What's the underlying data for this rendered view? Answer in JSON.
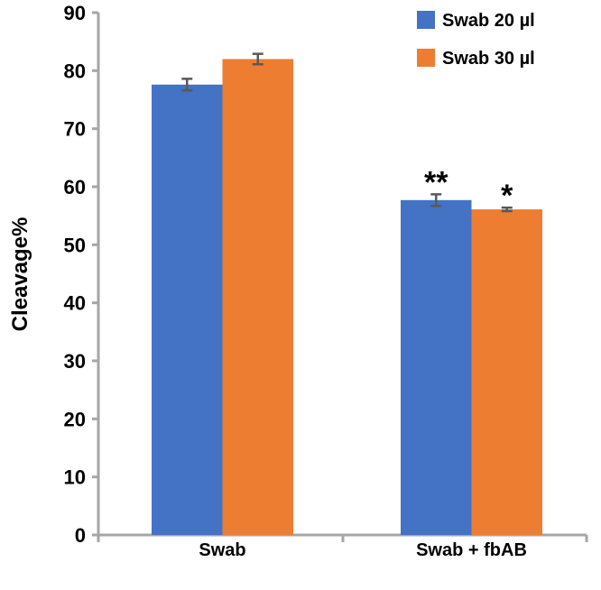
{
  "chart_data": {
    "type": "bar",
    "title": "",
    "xlabel": "",
    "ylabel": "Cleavage%",
    "ylim": [
      0,
      90
    ],
    "yticks": [
      "0",
      "10",
      "20",
      "30",
      "40",
      "50",
      "60",
      "70",
      "80",
      "90"
    ],
    "categories": [
      "Swab",
      "Swab + fbAB"
    ],
    "series": [
      {
        "name": "Swab 20 µl",
        "color": "#4472C4",
        "values": [
          77.6,
          57.7
        ],
        "errors": [
          1.0,
          1.0
        ],
        "annotations": [
          "",
          "**"
        ]
      },
      {
        "name": "Swab 30 µl",
        "color": "#ED7D31",
        "values": [
          82.0,
          56.1
        ],
        "errors": [
          0.9,
          0.3
        ],
        "annotations": [
          "",
          "*"
        ]
      }
    ],
    "legend": "top-right",
    "grid": false
  }
}
